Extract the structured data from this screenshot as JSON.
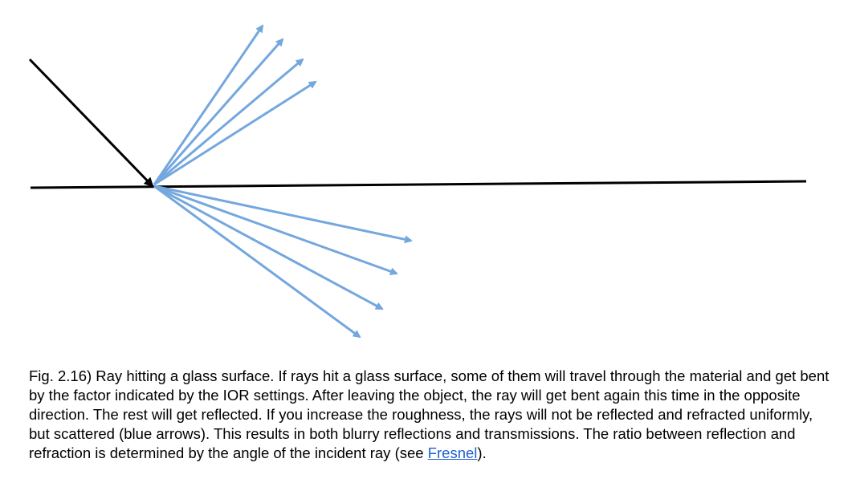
{
  "colors": {
    "surface": "#000000",
    "incident_ray": "#000000",
    "scattered_rays": "#74a7de",
    "link": "#1f5fd0",
    "text": "#000000"
  },
  "diagram": {
    "surface_label": "",
    "incident_ray_label": "",
    "reflected_ray_count": 4,
    "refracted_ray_count": 4
  },
  "caption": {
    "prefix": "Fig. 2.16) Ray hitting a glass surface. If rays hit a glass surface, some of them will travel through the material and get bent by the factor indicated by the IOR settings. After leaving the object, the ray will get bent again this time in the opposite direction. The rest will get reflected. If you increase the roughness, the rays will not be reflected and refracted uniformly, but scattered (blue arrows). This results in both blurry reflections and transmissions. The ratio between reflection and refraction is determined by the angle of the incident ray (see ",
    "link_text": "Fresnel",
    "suffix": ")."
  }
}
